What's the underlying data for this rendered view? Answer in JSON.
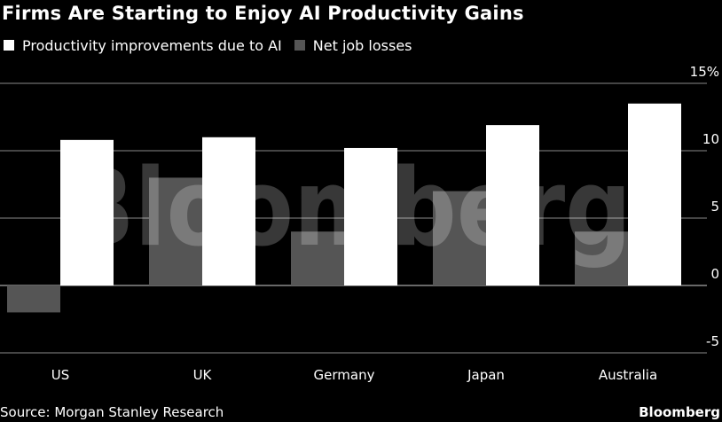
{
  "chart_data": {
    "type": "bar",
    "title": "Firms Are Starting to Enjoy AI Productivity Gains",
    "categories": [
      "US",
      "UK",
      "Germany",
      "Japan",
      "Australia"
    ],
    "series": [
      {
        "name": "Productivity improvements due to AI",
        "values": [
          10.8,
          11.0,
          10.2,
          11.9,
          13.5
        ],
        "color": "#ffffff"
      },
      {
        "name": "Net job losses",
        "values": [
          -2.0,
          8.0,
          4.0,
          7.0,
          4.0
        ],
        "color": "#555555"
      }
    ],
    "y_ticks": [
      {
        "value": 15,
        "label": "15%"
      },
      {
        "value": 10,
        "label": "10"
      },
      {
        "value": 5,
        "label": "5"
      },
      {
        "value": 0,
        "label": "0"
      },
      {
        "value": -5,
        "label": "-5"
      }
    ],
    "ylim": [
      -5,
      15
    ],
    "grid": true,
    "axis_side": "right",
    "legend_position": "top-left",
    "source": "Source: Morgan Stanley Research",
    "watermark": "Bloomberg",
    "brand": "Bloomberg"
  }
}
